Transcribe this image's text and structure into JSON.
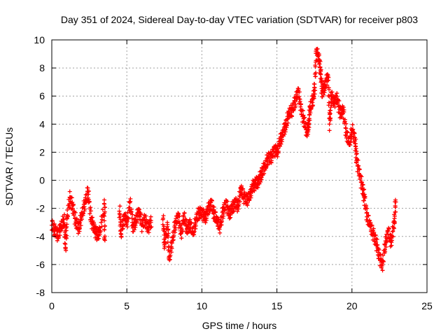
{
  "chart_data": {
    "type": "scatter",
    "title": "Day 351 of 2024, Sidereal Day-to-day VTEC variation (SDTVAR) for receiver p803",
    "xlabel": "GPS time / hours",
    "ylabel": "SDTVAR / TECUs",
    "xlim": [
      0,
      25
    ],
    "ylim": [
      -8,
      10
    ],
    "xticks": [
      0,
      5,
      10,
      15,
      20,
      25
    ],
    "yticks": [
      -8,
      -6,
      -4,
      -2,
      0,
      2,
      4,
      6,
      8,
      10
    ],
    "grid": true,
    "marker": "plus",
    "series": [
      {
        "name": "SDTVAR",
        "color": "#ff0000",
        "points": [
          [
            0.0,
            -3.2
          ],
          [
            0.2,
            -3.6
          ],
          [
            0.4,
            -3.9
          ],
          [
            0.6,
            -3.3
          ],
          [
            0.8,
            -2.8
          ],
          [
            0.9,
            -4.8
          ],
          [
            1.0,
            -2.6
          ],
          [
            1.2,
            -1.2
          ],
          [
            1.4,
            -2.0
          ],
          [
            1.6,
            -3.0
          ],
          [
            1.8,
            -3.4
          ],
          [
            2.0,
            -2.4
          ],
          [
            2.2,
            -1.6
          ],
          [
            2.4,
            -0.8
          ],
          [
            2.6,
            -2.8
          ],
          [
            2.8,
            -3.4
          ],
          [
            3.0,
            -3.9
          ],
          [
            3.2,
            -3.6
          ],
          [
            3.5,
            -1.7
          ],
          [
            3.5,
            -4.2
          ],
          [
            4.5,
            -2.2
          ],
          [
            4.6,
            -3.8
          ],
          [
            4.8,
            -2.6
          ],
          [
            5.0,
            -3.0
          ],
          [
            5.2,
            -1.6
          ],
          [
            5.4,
            -3.4
          ],
          [
            5.6,
            -2.8
          ],
          [
            5.8,
            -2.2
          ],
          [
            6.0,
            -3.2
          ],
          [
            6.2,
            -2.8
          ],
          [
            6.4,
            -3.4
          ],
          [
            6.6,
            -3.0
          ],
          [
            7.4,
            -2.8
          ],
          [
            7.5,
            -4.6
          ],
          [
            7.7,
            -3.3
          ],
          [
            7.8,
            -5.6
          ],
          [
            8.0,
            -4.4
          ],
          [
            8.2,
            -3.2
          ],
          [
            8.4,
            -2.5
          ],
          [
            8.6,
            -3.8
          ],
          [
            8.8,
            -2.6
          ],
          [
            9.0,
            -3.5
          ],
          [
            9.2,
            -3.1
          ],
          [
            9.4,
            -3.8
          ],
          [
            9.6,
            -2.8
          ],
          [
            9.8,
            -2.3
          ],
          [
            10.0,
            -2.3
          ],
          [
            10.2,
            -2.7
          ],
          [
            10.4,
            -2.1
          ],
          [
            10.6,
            -1.6
          ],
          [
            10.8,
            -2.4
          ],
          [
            11.0,
            -2.9
          ],
          [
            11.2,
            -3.3
          ],
          [
            11.4,
            -2.2
          ],
          [
            11.6,
            -1.6
          ],
          [
            11.8,
            -2.4
          ],
          [
            12.0,
            -2.0
          ],
          [
            12.2,
            -1.6
          ],
          [
            12.4,
            -1.8
          ],
          [
            12.6,
            -0.6
          ],
          [
            12.8,
            -1.2
          ],
          [
            13.0,
            -1.4
          ],
          [
            13.2,
            -1.0
          ],
          [
            13.4,
            -0.4
          ],
          [
            13.6,
            -0.2
          ],
          [
            13.8,
            0.0
          ],
          [
            14.0,
            0.6
          ],
          [
            14.2,
            1.0
          ],
          [
            14.4,
            1.6
          ],
          [
            14.6,
            1.6
          ],
          [
            14.8,
            2.2
          ],
          [
            15.0,
            2.0
          ],
          [
            15.2,
            2.8
          ],
          [
            15.4,
            3.4
          ],
          [
            15.6,
            4.0
          ],
          [
            15.8,
            4.8
          ],
          [
            16.0,
            5.0
          ],
          [
            16.2,
            5.6
          ],
          [
            16.4,
            6.4
          ],
          [
            16.6,
            5.0
          ],
          [
            16.8,
            4.2
          ],
          [
            17.0,
            3.4
          ],
          [
            17.1,
            4.0
          ],
          [
            17.2,
            5.2
          ],
          [
            17.4,
            5.8
          ],
          [
            17.5,
            6.6
          ],
          [
            17.6,
            9.2
          ],
          [
            17.8,
            8.6
          ],
          [
            17.9,
            7.6
          ],
          [
            18.0,
            6.2
          ],
          [
            18.2,
            6.8
          ],
          [
            18.4,
            7.4
          ],
          [
            18.5,
            4.0
          ],
          [
            18.6,
            6.0
          ],
          [
            18.8,
            5.6
          ],
          [
            19.0,
            5.8
          ],
          [
            19.2,
            4.8
          ],
          [
            19.4,
            5.0
          ],
          [
            19.6,
            3.4
          ],
          [
            19.8,
            2.6
          ],
          [
            20.0,
            3.6
          ],
          [
            20.2,
            2.8
          ],
          [
            20.3,
            1.4
          ],
          [
            20.5,
            0.4
          ],
          [
            20.7,
            -0.6
          ],
          [
            20.8,
            -1.2
          ],
          [
            21.0,
            -2.6
          ],
          [
            21.2,
            -3.2
          ],
          [
            21.4,
            -3.8
          ],
          [
            21.6,
            -4.4
          ],
          [
            21.8,
            -5.4
          ],
          [
            22.0,
            -6.1
          ],
          [
            22.2,
            -4.6
          ],
          [
            22.4,
            -3.6
          ],
          [
            22.6,
            -4.4
          ],
          [
            22.8,
            -3.0
          ],
          [
            22.9,
            -1.4
          ]
        ]
      }
    ]
  }
}
